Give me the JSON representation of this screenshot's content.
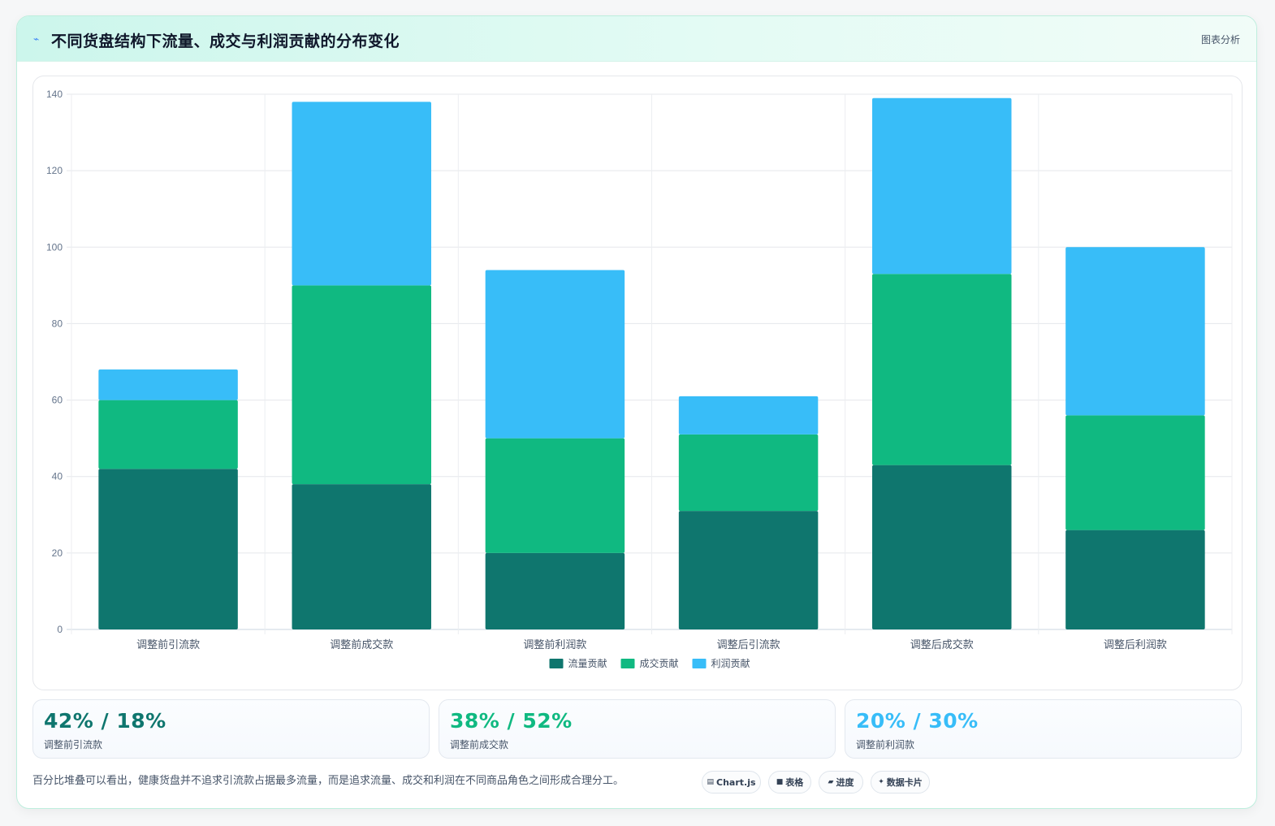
{
  "header": {
    "icon": "chart-line-icon",
    "title": "不同货盘结构下流量、成交与利润贡献的分布变化",
    "link_label": "图表分析"
  },
  "chart_data": {
    "type": "bar",
    "stacked": true,
    "categories": [
      "调整前引流款",
      "调整前成交款",
      "调整前利润款",
      "调整后引流款",
      "调整后成交款",
      "调整后利润款"
    ],
    "series": [
      {
        "name": "流量贡献",
        "color": "#0f766e",
        "values": [
          42,
          38,
          20,
          31,
          43,
          26
        ]
      },
      {
        "name": "成交贡献",
        "color": "#10b981",
        "values": [
          18,
          52,
          30,
          20,
          50,
          30
        ]
      },
      {
        "name": "利润贡献",
        "color": "#38bdf8",
        "values": [
          8,
          48,
          44,
          10,
          46,
          44
        ]
      }
    ],
    "ylim": [
      0,
      140
    ],
    "yticks": [
      0,
      20,
      40,
      60,
      80,
      100,
      120,
      140
    ],
    "grid": true,
    "legend_position": "bottom"
  },
  "stats": [
    {
      "value": "42% / 18%",
      "label": "调整前引流款",
      "color": "#0f766e"
    },
    {
      "value": "38% / 52%",
      "label": "调整前成交款",
      "color": "#10b981"
    },
    {
      "value": "20% / 30%",
      "label": "调整前利润款",
      "color": "#38bdf8"
    }
  ],
  "footnote": "百分比堆叠可以看出，健康货盘并不追求引流款占据最多流量，而是追求流量、成交和利润在不同商品角色之间形成合理分工。",
  "tags": [
    {
      "icon": "chart-icon",
      "glyph": "▤",
      "label": "Chart.js"
    },
    {
      "icon": "table-icon",
      "glyph": "■",
      "label": "表格"
    },
    {
      "icon": "progress-icon",
      "glyph": "▰",
      "label": "进度"
    },
    {
      "icon": "sparkle-icon",
      "glyph": "✦",
      "label": "数据卡片"
    }
  ]
}
